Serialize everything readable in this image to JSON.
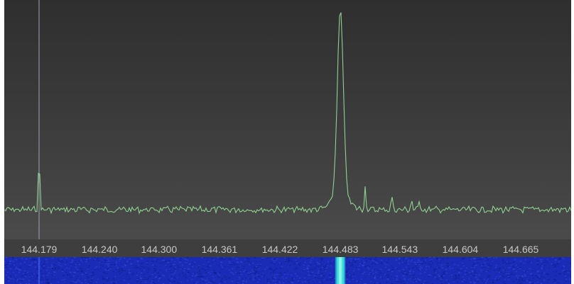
{
  "axis": {
    "tick_labels": [
      "144.179",
      "144.240",
      "144.300",
      "144.361",
      "144.422",
      "144.483",
      "144.543",
      "144.604",
      "144.665"
    ]
  },
  "colors": {
    "background": "#3b3b3b",
    "trace": "#8fd18f",
    "cursor": "#9aa3b5",
    "axis_text": "#c8c8c8",
    "waterfall_base": "#1a2bb8",
    "waterfall_signal": "#3fe0d8"
  },
  "spectrum": {
    "cursor_frequency": "144.179",
    "signals": [
      {
        "frequency": 144.179,
        "strength": 0.28
      },
      {
        "frequency": 144.483,
        "strength": 1.0
      },
      {
        "frequency": 144.508,
        "strength": 0.12
      },
      {
        "frequency": 144.535,
        "strength": 0.07
      },
      {
        "frequency": 144.555,
        "strength": 0.05
      },
      {
        "frequency": 144.563,
        "strength": 0.05
      },
      {
        "frequency": 144.72,
        "strength": 0.06
      }
    ]
  }
}
